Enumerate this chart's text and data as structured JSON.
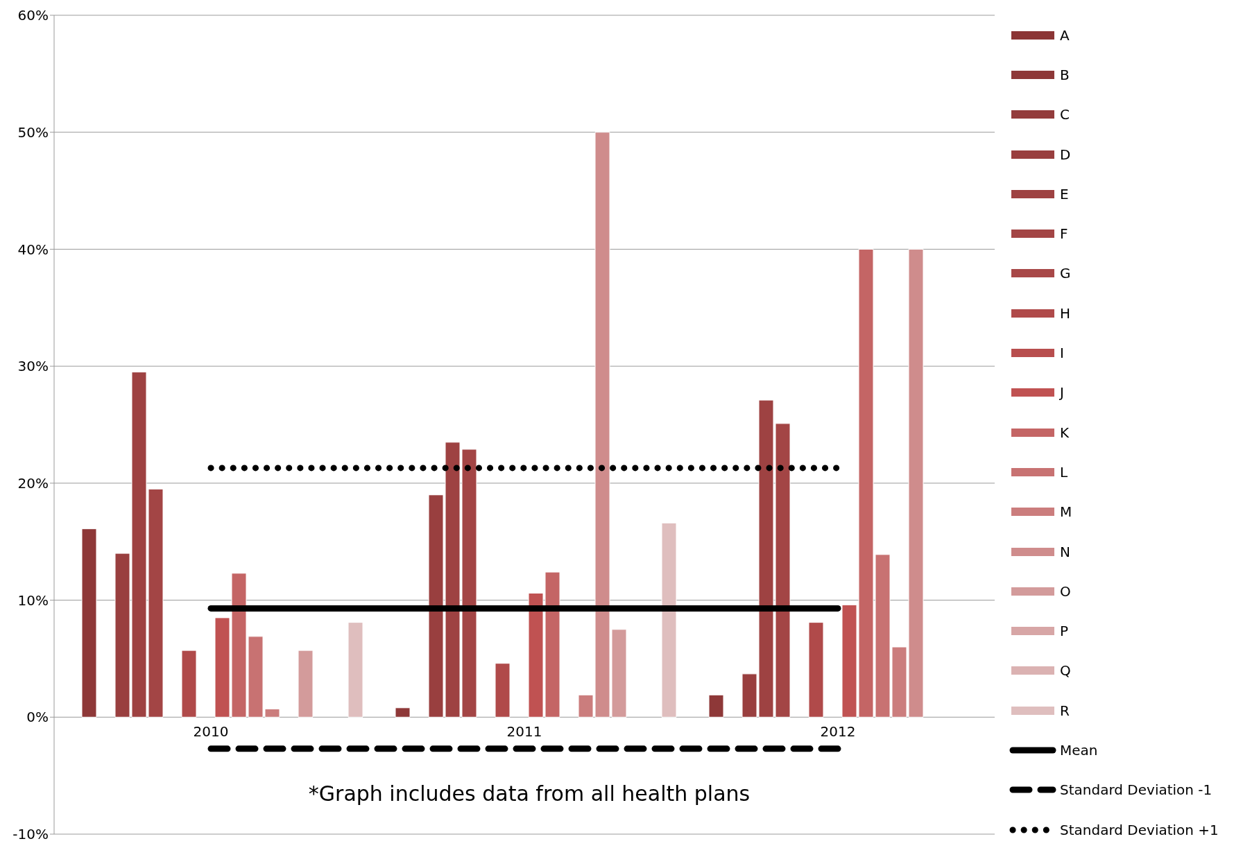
{
  "chart_data": {
    "type": "bar",
    "categories": [
      "2010",
      "2011",
      "2012"
    ],
    "series": [
      {
        "name": "A",
        "color": "#8b3535",
        "values": [
          0,
          0,
          0
        ]
      },
      {
        "name": "B",
        "color": "#8e3838",
        "values": [
          16.1,
          0.8,
          1.9
        ]
      },
      {
        "name": "C",
        "color": "#933c3c",
        "values": [
          0,
          0,
          0
        ]
      },
      {
        "name": "D",
        "color": "#993f3f",
        "values": [
          14.0,
          19.0,
          3.7
        ]
      },
      {
        "name": "E",
        "color": "#9e4242",
        "values": [
          29.5,
          23.5,
          27.1
        ]
      },
      {
        "name": "F",
        "color": "#a34545",
        "values": [
          19.5,
          22.9,
          25.1
        ]
      },
      {
        "name": "G",
        "color": "#a84848",
        "values": [
          0,
          0,
          0
        ]
      },
      {
        "name": "H",
        "color": "#b04a4a",
        "values": [
          5.7,
          4.6,
          8.1
        ]
      },
      {
        "name": "I",
        "color": "#b84e4e",
        "values": [
          0,
          0,
          0
        ]
      },
      {
        "name": "J",
        "color": "#c05252",
        "values": [
          8.5,
          10.6,
          9.6
        ]
      },
      {
        "name": "K",
        "color": "#c46565",
        "values": [
          12.3,
          12.4,
          40
        ]
      },
      {
        "name": "L",
        "color": "#c87272",
        "values": [
          6.9,
          0,
          13.9
        ]
      },
      {
        "name": "M",
        "color": "#cb7d7d",
        "values": [
          0.7,
          1.9,
          6.0
        ]
      },
      {
        "name": "N",
        "color": "#cf8c8c",
        "values": [
          0,
          50,
          40
        ]
      },
      {
        "name": "O",
        "color": "#d39b9b",
        "values": [
          5.7,
          7.5,
          0
        ]
      },
      {
        "name": "P",
        "color": "#d7a6a6",
        "values": [
          0,
          0,
          0
        ]
      },
      {
        "name": "Q",
        "color": "#dbb2b2",
        "values": [
          0,
          0,
          0
        ]
      },
      {
        "name": "R",
        "color": "#dfbebe",
        "values": [
          8.1,
          16.6,
          0
        ]
      },
      {
        "name": "Mean",
        "type": "line",
        "line_style": "solid",
        "color": "#000000",
        "values": [
          9.3,
          9.3,
          9.3
        ]
      },
      {
        "name": "Standard Deviation -1",
        "type": "line",
        "line_style": "dashed",
        "color": "#000000",
        "values": [
          -2.7,
          -2.7,
          -2.7
        ]
      },
      {
        "name": "Standard Deviation +1",
        "type": "line",
        "line_style": "dotted",
        "color": "#000000",
        "values": [
          21.3,
          21.3,
          21.3
        ]
      }
    ],
    "ylim": [
      -10,
      60
    ],
    "yticks": [
      {
        "value": -10,
        "label": "-10%"
      },
      {
        "value": 0,
        "label": "0%"
      },
      {
        "value": 10,
        "label": "10%"
      },
      {
        "value": 20,
        "label": "20%"
      },
      {
        "value": 30,
        "label": "30%"
      },
      {
        "value": 40,
        "label": "40%"
      },
      {
        "value": 50,
        "label": "50%"
      },
      {
        "value": 60,
        "label": "60%"
      }
    ],
    "grid": "y",
    "legend": "right",
    "annotations": [
      "*Graph includes data from all health plans"
    ]
  }
}
